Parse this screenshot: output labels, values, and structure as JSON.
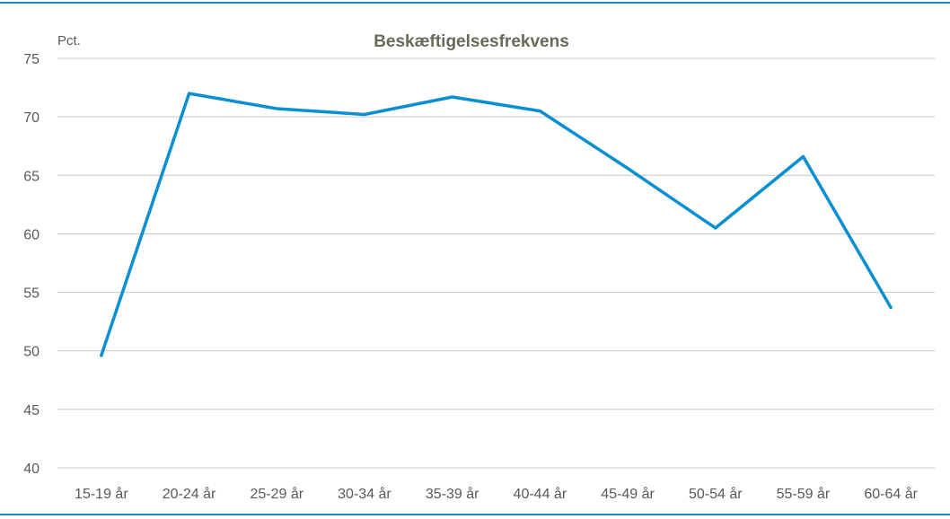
{
  "chart_data": {
    "type": "line",
    "title": "Beskæftigelsesfrekvens",
    "ylabel": "Pct.",
    "xlabel": "",
    "categories": [
      "15-19 år",
      "20-24 år",
      "25-29 år",
      "30-34 år",
      "35-39 år",
      "40-44 år",
      "45-49 år",
      "50-54 år",
      "55-59 år",
      "60-64 år"
    ],
    "series": [
      {
        "values": [
          49.6,
          72.0,
          70.7,
          70.2,
          71.7,
          70.5,
          65.6,
          60.5,
          66.6,
          53.7
        ]
      }
    ],
    "ylim": [
      40,
      75
    ],
    "yticks": [
      40,
      45,
      50,
      55,
      60,
      65,
      70,
      75
    ],
    "grid": true,
    "legend": "none",
    "colors": {
      "line": "#0a8fd0",
      "grid": "#c8c8c8",
      "rule": "#1e8bb8",
      "text": "#595959",
      "title": "#6a6a5a"
    }
  }
}
